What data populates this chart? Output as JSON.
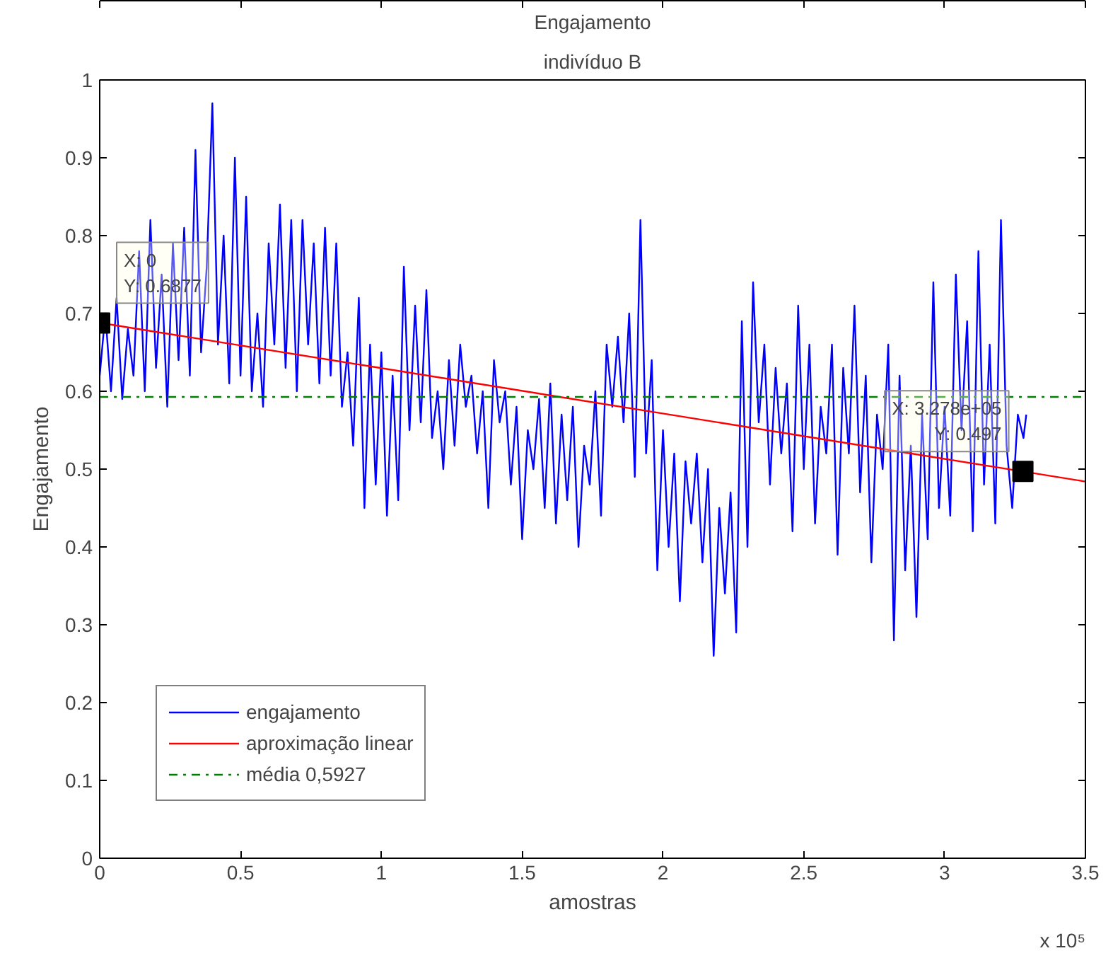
{
  "chart_data": {
    "type": "line",
    "title": "Engajamento",
    "subtitle": "indivíduo B",
    "xlabel": "amostras",
    "ylabel": "Engajamento",
    "xlim": [
      0,
      3.5
    ],
    "xticks": [
      0,
      0.5,
      1,
      1.5,
      2,
      2.5,
      3,
      3.5
    ],
    "ylim": [
      0,
      1
    ],
    "yticks": [
      0,
      0.1,
      0.2,
      0.3,
      0.4,
      0.5,
      0.6,
      0.7,
      0.8,
      0.9,
      1
    ],
    "grid": false,
    "legend": "bottom left",
    "line_style": "solid",
    "series": [
      {
        "name": "engajamento",
        "color": "#0000ff",
        "x": [
          0,
          0.02,
          0.04,
          0.06,
          0.08,
          0.1,
          0.12,
          0.14,
          0.16,
          0.18,
          0.2,
          0.22,
          0.24,
          0.26,
          0.28,
          0.3,
          0.32,
          0.34,
          0.36,
          0.38,
          0.4,
          0.42,
          0.44,
          0.46,
          0.48,
          0.5,
          0.52,
          0.54,
          0.56,
          0.58,
          0.6,
          0.62,
          0.64,
          0.66,
          0.68,
          0.7,
          0.72,
          0.74,
          0.76,
          0.78,
          0.8,
          0.82,
          0.84,
          0.86,
          0.88,
          0.9,
          0.92,
          0.94,
          0.96,
          0.98,
          1.0,
          1.02,
          1.04,
          1.06,
          1.08,
          1.1,
          1.12,
          1.14,
          1.16,
          1.18,
          1.2,
          1.22,
          1.24,
          1.26,
          1.28,
          1.3,
          1.32,
          1.34,
          1.36,
          1.38,
          1.4,
          1.42,
          1.44,
          1.46,
          1.48,
          1.5,
          1.52,
          1.54,
          1.56,
          1.58,
          1.6,
          1.62,
          1.64,
          1.66,
          1.68,
          1.7,
          1.72,
          1.74,
          1.76,
          1.78,
          1.8,
          1.82,
          1.84,
          1.86,
          1.88,
          1.9,
          1.92,
          1.94,
          1.96,
          1.98,
          2.0,
          2.02,
          2.04,
          2.06,
          2.08,
          2.1,
          2.12,
          2.14,
          2.16,
          2.18,
          2.2,
          2.22,
          2.24,
          2.26,
          2.28,
          2.3,
          2.32,
          2.34,
          2.36,
          2.38,
          2.4,
          2.42,
          2.44,
          2.46,
          2.48,
          2.5,
          2.52,
          2.54,
          2.56,
          2.58,
          2.6,
          2.62,
          2.64,
          2.66,
          2.68,
          2.7,
          2.72,
          2.74,
          2.76,
          2.78,
          2.8,
          2.82,
          2.84,
          2.86,
          2.88,
          2.9,
          2.92,
          2.94,
          2.96,
          2.98,
          3.0,
          3.02,
          3.04,
          3.06,
          3.08,
          3.1,
          3.12,
          3.14,
          3.16,
          3.18,
          3.2,
          3.22,
          3.24,
          3.26,
          3.28,
          3.29
        ],
        "values": [
          0.62,
          0.7,
          0.6,
          0.72,
          0.59,
          0.68,
          0.62,
          0.78,
          0.6,
          0.82,
          0.63,
          0.75,
          0.58,
          0.79,
          0.64,
          0.81,
          0.62,
          0.91,
          0.65,
          0.76,
          0.97,
          0.66,
          0.8,
          0.61,
          0.9,
          0.62,
          0.85,
          0.6,
          0.7,
          0.58,
          0.79,
          0.66,
          0.84,
          0.63,
          0.82,
          0.6,
          0.82,
          0.66,
          0.79,
          0.61,
          0.81,
          0.62,
          0.79,
          0.58,
          0.65,
          0.53,
          0.72,
          0.45,
          0.66,
          0.48,
          0.65,
          0.44,
          0.62,
          0.46,
          0.76,
          0.55,
          0.71,
          0.56,
          0.73,
          0.54,
          0.6,
          0.5,
          0.64,
          0.53,
          0.66,
          0.58,
          0.62,
          0.52,
          0.6,
          0.45,
          0.64,
          0.56,
          0.6,
          0.48,
          0.58,
          0.41,
          0.55,
          0.5,
          0.59,
          0.45,
          0.61,
          0.43,
          0.57,
          0.46,
          0.58,
          0.4,
          0.53,
          0.48,
          0.6,
          0.44,
          0.66,
          0.58,
          0.67,
          0.56,
          0.7,
          0.49,
          0.82,
          0.52,
          0.64,
          0.37,
          0.55,
          0.4,
          0.52,
          0.33,
          0.51,
          0.43,
          0.52,
          0.38,
          0.5,
          0.26,
          0.45,
          0.34,
          0.47,
          0.29,
          0.69,
          0.4,
          0.74,
          0.56,
          0.66,
          0.48,
          0.63,
          0.52,
          0.61,
          0.42,
          0.71,
          0.5,
          0.66,
          0.43,
          0.58,
          0.52,
          0.66,
          0.39,
          0.63,
          0.52,
          0.71,
          0.47,
          0.62,
          0.38,
          0.57,
          0.5,
          0.66,
          0.28,
          0.62,
          0.37,
          0.53,
          0.31,
          0.57,
          0.41,
          0.74,
          0.45,
          0.58,
          0.44,
          0.75,
          0.55,
          0.69,
          0.42,
          0.78,
          0.48,
          0.66,
          0.43,
          0.82,
          0.53,
          0.45,
          0.57,
          0.54,
          0.57
        ]
      },
      {
        "name": "aproximação linear",
        "color": "#ff0000",
        "x": [
          0,
          3.5
        ],
        "values": [
          0.688,
          0.484
        ]
      }
    ],
    "ref_lines": [
      {
        "axis": "y",
        "value": 0.5927,
        "label": "média 0,5927",
        "color": "#008000",
        "line_style": "dashdot"
      }
    ],
    "annotations": [
      {
        "text": "X: 0\nY: 0.6877",
        "x": 0,
        "y": 0.6877
      },
      {
        "text": "X: 3.278e+05\nY: 0.497",
        "x": 3.278,
        "y": 0.497
      },
      "x 10⁵"
    ]
  }
}
